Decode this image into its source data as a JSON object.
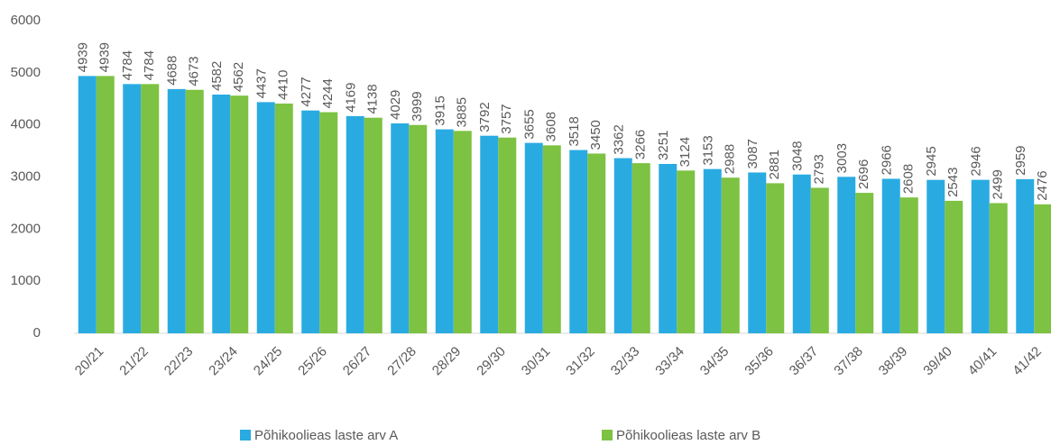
{
  "chart_data": {
    "type": "bar",
    "categories": [
      "20/21",
      "21/22",
      "22/23",
      "23/24",
      "24/25",
      "25/26",
      "26/27",
      "27/28",
      "28/29",
      "29/30",
      "30/31",
      "31/32",
      "32/33",
      "33/34",
      "34/35",
      "35/36",
      "36/37",
      "37/38",
      "38/39",
      "39/40",
      "40/41",
      "41/42"
    ],
    "series": [
      {
        "name": "Põhikoolieas laste arv  A",
        "color": "#29abe2",
        "values": [
          4939,
          4784,
          4688,
          4582,
          4437,
          4277,
          4169,
          4029,
          3915,
          3792,
          3655,
          3518,
          3362,
          3251,
          3153,
          3087,
          3048,
          3003,
          2966,
          2945,
          2946,
          2959
        ]
      },
      {
        "name": "Põhikoolieas laste arv  B",
        "color": "#7dc242",
        "values": [
          4939,
          4784,
          4673,
          4562,
          4410,
          4244,
          4138,
          3999,
          3885,
          3757,
          3608,
          3450,
          3266,
          3124,
          2988,
          2881,
          2793,
          2696,
          2608,
          2543,
          2499,
          2476
        ]
      }
    ],
    "ylim": [
      0,
      6000
    ],
    "yticks": [
      0,
      1000,
      2000,
      3000,
      4000,
      5000,
      6000
    ],
    "legend": "bottom"
  }
}
